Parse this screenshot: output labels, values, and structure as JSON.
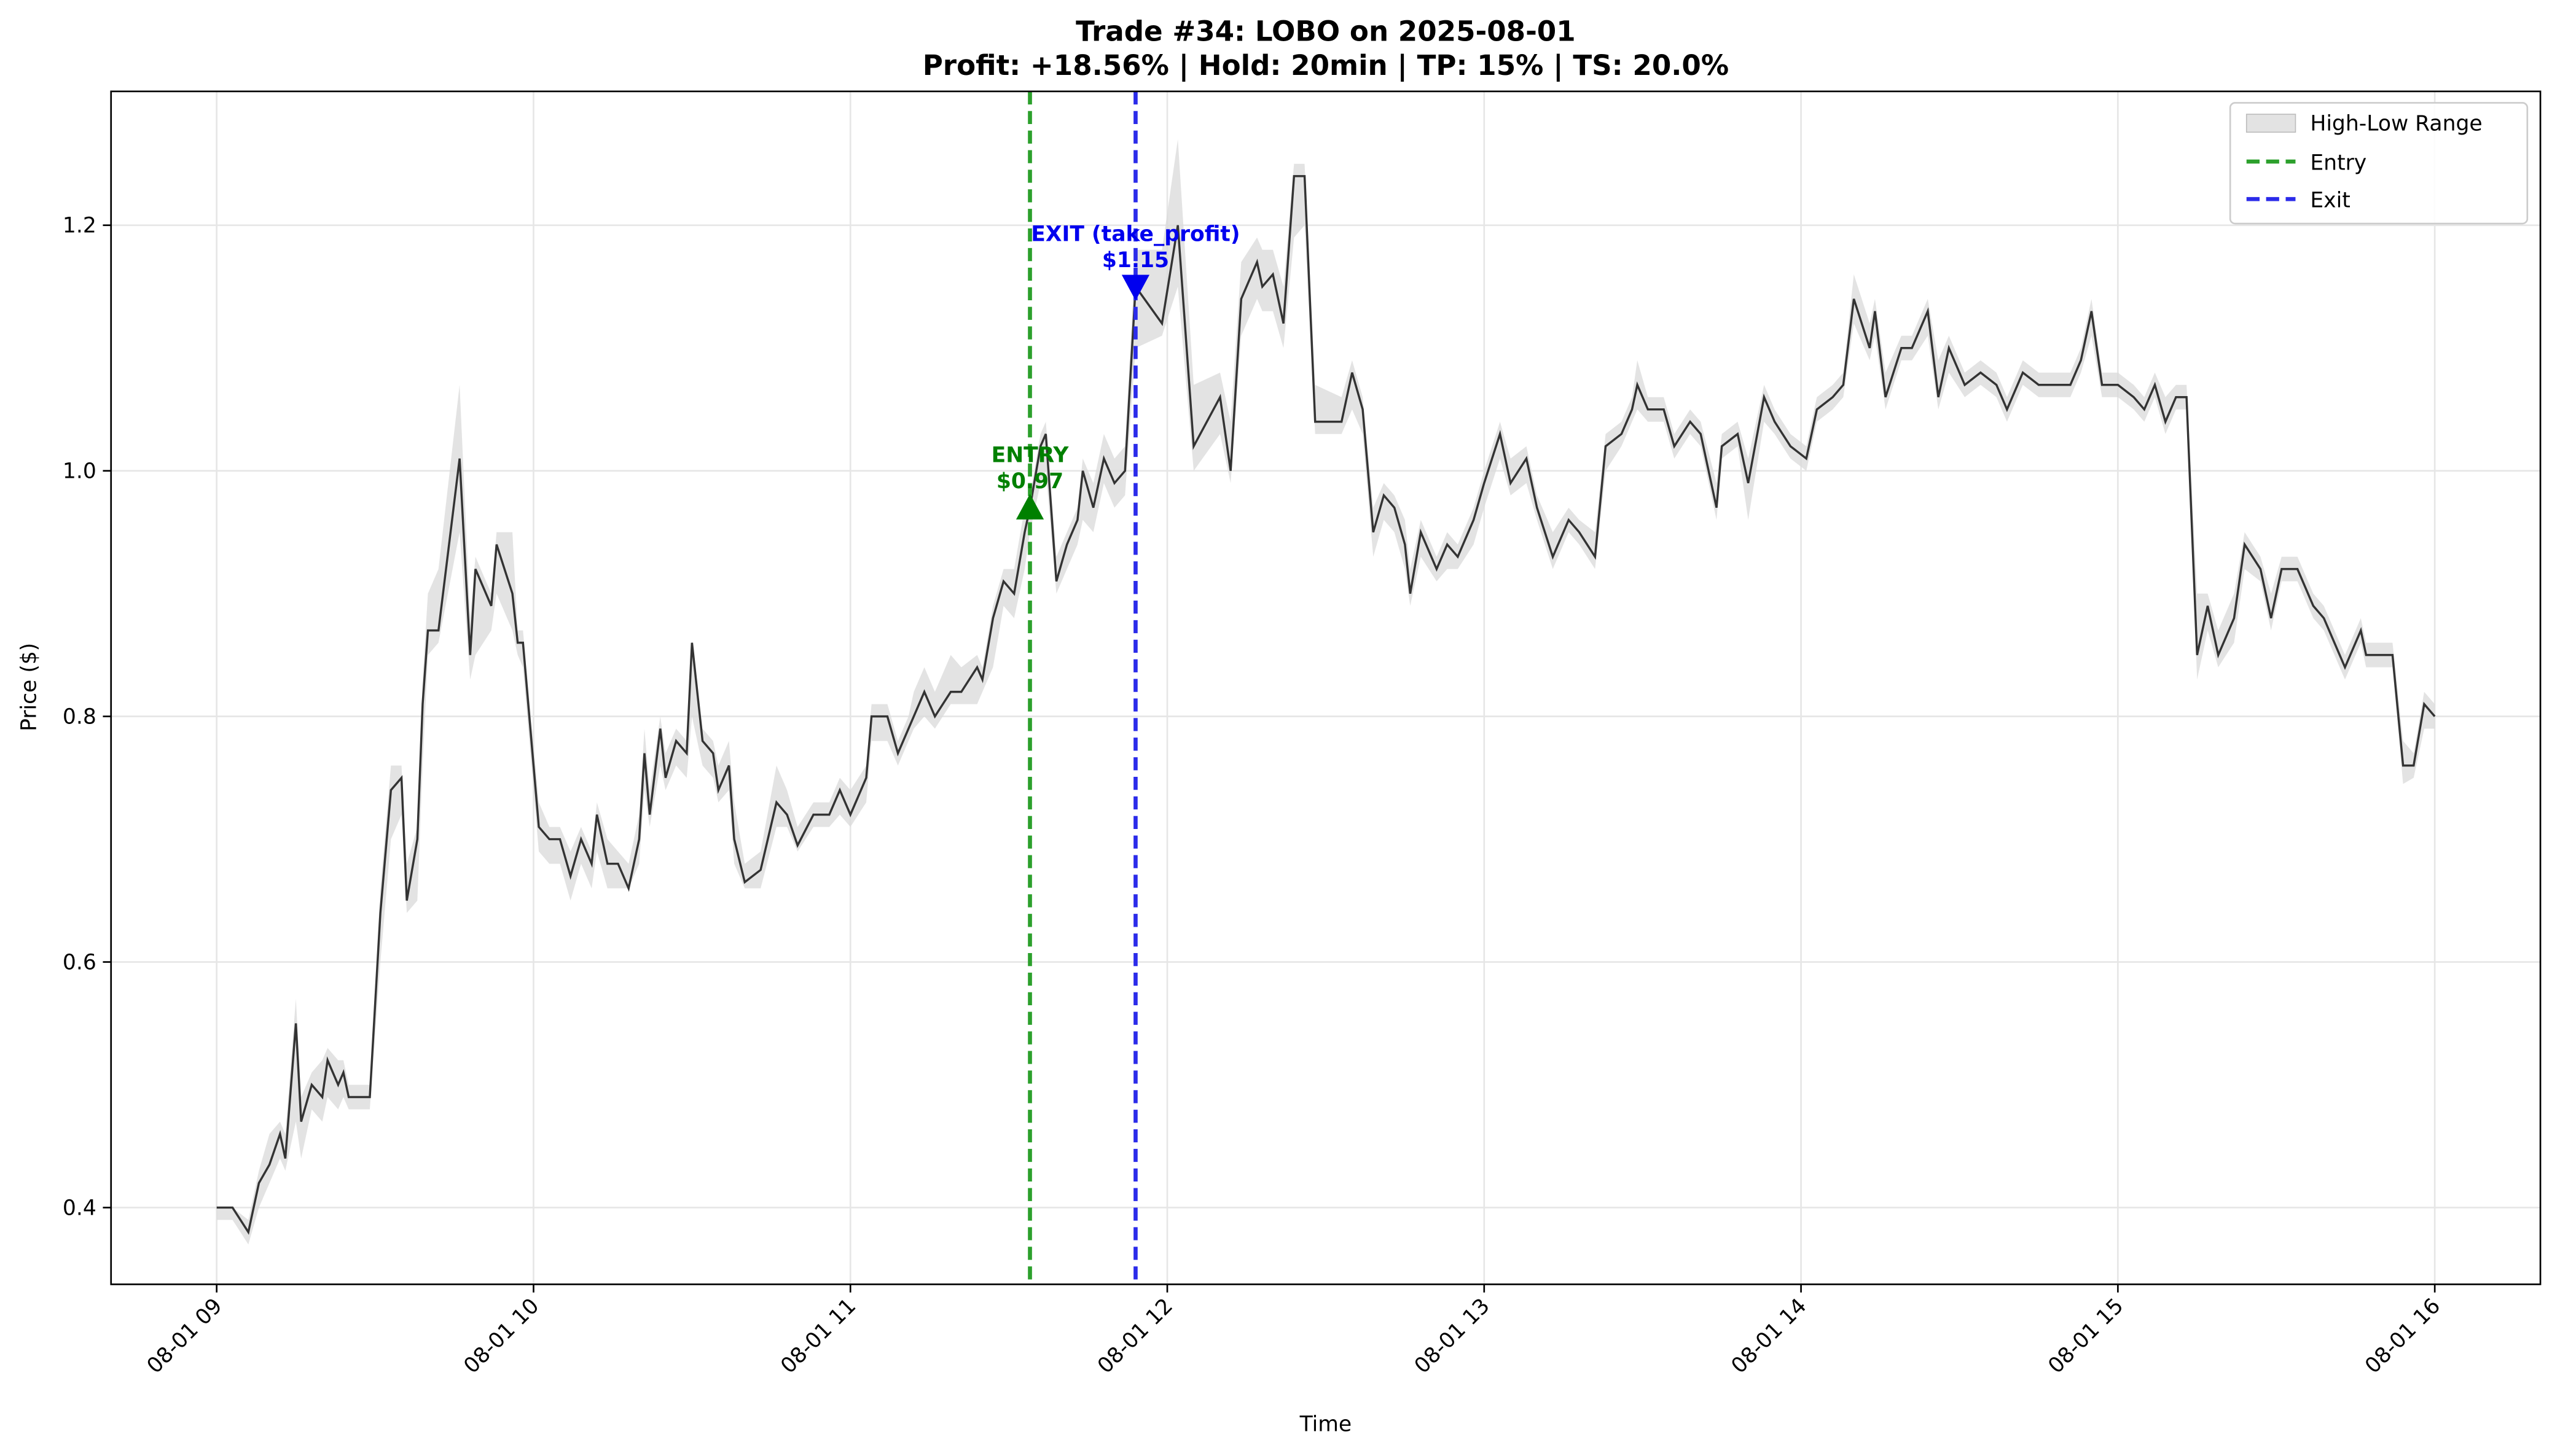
{
  "chart_data": {
    "type": "line",
    "title": "Trade #34: LOBO on 2025-08-01",
    "subtitle": "Profit: +18.56% | Hold: 20min | TP: 15% | TS: 20.0%",
    "xlabel": "Time",
    "ylabel": "Price ($)",
    "grid": true,
    "legend": "upper right",
    "color": "#333333",
    "xlim": [
      "08-01 08:40",
      "08-01 16:20"
    ],
    "xticks": [
      {
        "value": "08-01 09:00",
        "label": "08-01 09"
      },
      {
        "value": "08-01 10:00",
        "label": "08-01 10"
      },
      {
        "value": "08-01 11:00",
        "label": "08-01 11"
      },
      {
        "value": "08-01 12:00",
        "label": "08-01 12"
      },
      {
        "value": "08-01 13:00",
        "label": "08-01 13"
      },
      {
        "value": "08-01 14:00",
        "label": "08-01 14"
      },
      {
        "value": "08-01 15:00",
        "label": "08-01 15"
      },
      {
        "value": "08-01 16:00",
        "label": "08-01 16"
      }
    ],
    "ylim": [
      0.3375,
      1.309
    ],
    "yticks": [
      0.4,
      0.6,
      0.8,
      {
        "value": 1,
        "label": "1.0"
      },
      1.2
    ],
    "x": [
      "08-01 09:00",
      "08-01 09:03",
      "08-01 09:06",
      "08-01 09:08",
      "08-01 09:10",
      "08-01 09:12",
      "08-01 09:13",
      "08-01 09:15",
      "08-01 09:16",
      "08-01 09:18",
      "08-01 09:20",
      "08-01 09:21",
      "08-01 09:23",
      "08-01 09:24",
      "08-01 09:25",
      "08-01 09:27",
      "08-01 09:29",
      "08-01 09:31",
      "08-01 09:33",
      "08-01 09:35",
      "08-01 09:36",
      "08-01 09:38",
      "08-01 09:39",
      "08-01 09:40",
      "08-01 09:42",
      "08-01 09:46",
      "08-01 09:48",
      "08-01 09:49",
      "08-01 09:52",
      "08-01 09:53",
      "08-01 09:56",
      "08-01 09:57",
      "08-01 09:58",
      "08-01 10:01",
      "08-01 10:03",
      "08-01 10:05",
      "08-01 10:07",
      "08-01 10:09",
      "08-01 10:11",
      "08-01 10:12",
      "08-01 10:14",
      "08-01 10:16",
      "08-01 10:18",
      "08-01 10:20",
      "08-01 10:21",
      "08-01 10:22",
      "08-01 10:24",
      "08-01 10:25",
      "08-01 10:27",
      "08-01 10:29",
      "08-01 10:30",
      "08-01 10:32",
      "08-01 10:34",
      "08-01 10:35",
      "08-01 10:37",
      "08-01 10:38",
      "08-01 10:40",
      "08-01 10:43",
      "08-01 10:46",
      "08-01 10:48",
      "08-01 10:50",
      "08-01 10:53",
      "08-01 10:56",
      "08-01 10:58",
      "08-01 11:00",
      "08-01 11:03",
      "08-01 11:04",
      "08-01 11:07",
      "08-01 11:09",
      "08-01 11:11",
      "08-01 11:12",
      "08-01 11:14",
      "08-01 11:16",
      "08-01 11:19",
      "08-01 11:21",
      "08-01 11:24",
      "08-01 11:25",
      "08-01 11:27",
      "08-01 11:29",
      "08-01 11:31",
      "08-01 11:33",
      "08-01 11:34",
      "08-01 11:36",
      "08-01 11:37",
      "08-01 11:39",
      "08-01 11:41",
      "08-01 11:43",
      "08-01 11:44",
      "08-01 11:46",
      "08-01 11:48",
      "08-01 11:50",
      "08-01 11:52",
      "08-01 11:54",
      "08-01 11:59",
      "08-01 12:02",
      "08-01 12:05",
      "08-01 12:10",
      "08-01 12:12",
      "08-01 12:14",
      "08-01 12:17",
      "08-01 12:18",
      "08-01 12:20",
      "08-01 12:22",
      "08-01 12:24",
      "08-01 12:26",
      "08-01 12:28",
      "08-01 12:33",
      "08-01 12:35",
      "08-01 12:37",
      "08-01 12:39",
      "08-01 12:41",
      "08-01 12:43",
      "08-01 12:45",
      "08-01 12:46",
      "08-01 12:48",
      "08-01 12:51",
      "08-01 12:53",
      "08-01 12:55",
      "08-01 12:58",
      "08-01 13:00",
      "08-01 13:03",
      "08-01 13:05",
      "08-01 13:08",
      "08-01 13:10",
      "08-01 13:13",
      "08-01 13:16",
      "08-01 13:18",
      "08-01 13:21",
      "08-01 13:23",
      "08-01 13:26",
      "08-01 13:28",
      "08-01 13:29",
      "08-01 13:31",
      "08-01 13:34",
      "08-01 13:36",
      "08-01 13:39",
      "08-01 13:41",
      "08-01 13:44",
      "08-01 13:45",
      "08-01 13:48",
      "08-01 13:50",
      "08-01 13:53",
      "08-01 13:55",
      "08-01 13:58",
      "08-01 14:01",
      "08-01 14:03",
      "08-01 14:06",
      "08-01 14:08",
      "08-01 14:10",
      "08-01 14:13",
      "08-01 14:14",
      "08-01 14:16",
      "08-01 14:19",
      "08-01 14:21",
      "08-01 14:24",
      "08-01 14:26",
      "08-01 14:28",
      "08-01 14:31",
      "08-01 14:34",
      "08-01 14:37",
      "08-01 14:39",
      "08-01 14:42",
      "08-01 14:45",
      "08-01 14:48",
      "08-01 14:51",
      "08-01 14:53",
      "08-01 14:55",
      "08-01 14:57",
      "08-01 15:00",
      "08-01 15:03",
      "08-01 15:05",
      "08-01 15:07",
      "08-01 15:09",
      "08-01 15:11",
      "08-01 15:13",
      "08-01 15:15",
      "08-01 15:17",
      "08-01 15:19",
      "08-01 15:22",
      "08-01 15:24",
      "08-01 15:27",
      "08-01 15:29",
      "08-01 15:31",
      "08-01 15:34",
      "08-01 15:37",
      "08-01 15:39",
      "08-01 15:42",
      "08-01 15:43",
      "08-01 15:46",
      "08-01 15:47",
      "08-01 15:50",
      "08-01 15:52",
      "08-01 15:54",
      "08-01 15:56",
      "08-01 15:58",
      "08-01 16:00"
    ],
    "values": [
      0.4,
      0.4,
      0.38,
      0.42,
      0.435,
      0.46,
      0.44,
      0.55,
      0.47,
      0.5,
      0.49,
      0.52,
      0.5,
      0.51,
      0.49,
      0.49,
      0.49,
      0.64,
      0.74,
      0.75,
      0.65,
      0.7,
      0.81,
      0.87,
      0.87,
      1.01,
      0.85,
      0.92,
      0.89,
      0.94,
      0.9,
      0.86,
      0.86,
      0.71,
      0.7,
      0.7,
      0.67,
      0.7,
      0.68,
      0.72,
      0.68,
      0.68,
      0.66,
      0.7,
      0.77,
      0.72,
      0.79,
      0.75,
      0.78,
      0.77,
      0.86,
      0.78,
      0.77,
      0.74,
      0.76,
      0.7,
      0.665,
      0.675,
      0.73,
      0.72,
      0.695,
      0.72,
      0.72,
      0.74,
      0.72,
      0.75,
      0.8,
      0.8,
      0.77,
      0.79,
      0.8,
      0.82,
      0.8,
      0.82,
      0.82,
      0.84,
      0.83,
      0.88,
      0.91,
      0.9,
      0.95,
      0.97,
      1.02,
      1.03,
      0.91,
      0.94,
      0.96,
      1.0,
      0.97,
      1.01,
      0.99,
      1.0,
      1.15,
      1.12,
      1.2,
      1.02,
      1.06,
      1.0,
      1.14,
      1.17,
      1.15,
      1.16,
      1.12,
      1.24,
      1.24,
      1.04,
      1.04,
      1.08,
      1.05,
      0.95,
      0.98,
      0.97,
      0.94,
      0.9,
      0.95,
      0.92,
      0.94,
      0.93,
      0.96,
      0.99,
      1.03,
      0.99,
      1.01,
      0.97,
      0.93,
      0.96,
      0.95,
      0.93,
      1.02,
      1.03,
      1.05,
      1.07,
      1.05,
      1.05,
      1.02,
      1.04,
      1.03,
      0.97,
      1.02,
      1.03,
      0.99,
      1.06,
      1.04,
      1.02,
      1.01,
      1.05,
      1.06,
      1.07,
      1.14,
      1.1,
      1.13,
      1.06,
      1.1,
      1.1,
      1.13,
      1.06,
      1.1,
      1.07,
      1.08,
      1.07,
      1.05,
      1.08,
      1.07,
      1.07,
      1.07,
      1.09,
      1.13,
      1.07,
      1.07,
      1.06,
      1.05,
      1.07,
      1.04,
      1.06,
      1.06,
      0.85,
      0.89,
      0.85,
      0.88,
      0.94,
      0.92,
      0.88,
      0.92,
      0.92,
      0.89,
      0.88,
      0.85,
      0.84,
      0.87,
      0.85,
      0.85,
      0.85,
      0.76,
      0.76,
      0.81,
      0.8
    ],
    "range": {
      "name": "High-Low Range",
      "color": "#d9d9d9",
      "high": [
        0.4,
        0.4,
        0.39,
        0.43,
        0.46,
        0.47,
        0.46,
        0.57,
        0.49,
        0.51,
        0.52,
        0.53,
        0.52,
        0.52,
        0.5,
        0.5,
        0.5,
        0.66,
        0.76,
        0.76,
        0.68,
        0.71,
        0.83,
        0.9,
        0.92,
        1.07,
        0.88,
        0.93,
        0.9,
        0.95,
        0.95,
        0.87,
        0.87,
        0.73,
        0.71,
        0.71,
        0.69,
        0.71,
        0.69,
        0.73,
        0.7,
        0.69,
        0.68,
        0.72,
        0.79,
        0.74,
        0.8,
        0.77,
        0.79,
        0.78,
        0.86,
        0.79,
        0.78,
        0.76,
        0.78,
        0.73,
        0.68,
        0.69,
        0.76,
        0.74,
        0.71,
        0.73,
        0.73,
        0.75,
        0.74,
        0.76,
        0.81,
        0.81,
        0.78,
        0.8,
        0.82,
        0.84,
        0.82,
        0.85,
        0.84,
        0.85,
        0.84,
        0.89,
        0.92,
        0.92,
        0.97,
        0.98,
        1.03,
        1.04,
        0.93,
        0.95,
        0.97,
        1.01,
        0.99,
        1.03,
        1.01,
        1.02,
        1.18,
        1.18,
        1.27,
        1.07,
        1.08,
        1.04,
        1.17,
        1.19,
        1.18,
        1.18,
        1.15,
        1.25,
        1.25,
        1.07,
        1.06,
        1.09,
        1.06,
        0.97,
        0.99,
        0.98,
        0.96,
        0.92,
        0.96,
        0.93,
        0.95,
        0.94,
        0.97,
        1.0,
        1.04,
        1.01,
        1.02,
        0.98,
        0.95,
        0.97,
        0.96,
        0.95,
        1.03,
        1.04,
        1.06,
        1.09,
        1.06,
        1.06,
        1.03,
        1.05,
        1.04,
        0.99,
        1.03,
        1.04,
        1.01,
        1.07,
        1.05,
        1.03,
        1.02,
        1.06,
        1.07,
        1.08,
        1.16,
        1.12,
        1.14,
        1.08,
        1.11,
        1.11,
        1.14,
        1.09,
        1.11,
        1.08,
        1.09,
        1.08,
        1.06,
        1.09,
        1.08,
        1.08,
        1.08,
        1.1,
        1.14,
        1.08,
        1.08,
        1.07,
        1.06,
        1.08,
        1.06,
        1.07,
        1.07,
        0.9,
        0.9,
        0.87,
        0.9,
        0.95,
        0.93,
        0.9,
        0.93,
        0.93,
        0.9,
        0.89,
        0.86,
        0.85,
        0.88,
        0.86,
        0.86,
        0.86,
        0.78,
        0.77,
        0.82,
        0.81
      ],
      "low": [
        0.39,
        0.39,
        0.37,
        0.4,
        0.42,
        0.44,
        0.43,
        0.47,
        0.44,
        0.48,
        0.47,
        0.49,
        0.48,
        0.49,
        0.48,
        0.48,
        0.48,
        0.6,
        0.7,
        0.72,
        0.64,
        0.65,
        0.76,
        0.85,
        0.86,
        0.95,
        0.83,
        0.85,
        0.87,
        0.9,
        0.87,
        0.85,
        0.84,
        0.69,
        0.68,
        0.68,
        0.65,
        0.68,
        0.66,
        0.69,
        0.66,
        0.66,
        0.66,
        0.68,
        0.74,
        0.71,
        0.76,
        0.74,
        0.76,
        0.75,
        0.8,
        0.76,
        0.75,
        0.73,
        0.74,
        0.68,
        0.66,
        0.66,
        0.71,
        0.71,
        0.69,
        0.71,
        0.71,
        0.72,
        0.71,
        0.73,
        0.78,
        0.78,
        0.76,
        0.78,
        0.79,
        0.8,
        0.79,
        0.81,
        0.81,
        0.81,
        0.82,
        0.84,
        0.89,
        0.88,
        0.92,
        0.95,
        0.99,
        1.0,
        0.9,
        0.92,
        0.94,
        0.96,
        0.95,
        0.99,
        0.97,
        0.98,
        1.1,
        1.11,
        1.15,
        1.0,
        1.03,
        0.99,
        1.11,
        1.14,
        1.13,
        1.13,
        1.1,
        1.19,
        1.2,
        1.03,
        1.03,
        1.05,
        1.03,
        0.93,
        0.96,
        0.95,
        0.92,
        0.89,
        0.93,
        0.91,
        0.92,
        0.92,
        0.94,
        0.97,
        1.01,
        0.98,
        0.99,
        0.96,
        0.92,
        0.95,
        0.94,
        0.92,
        1.0,
        1.02,
        1.04,
        1.05,
        1.04,
        1.04,
        1.01,
        1.03,
        1.02,
        0.96,
        1.01,
        1.02,
        0.96,
        1.04,
        1.03,
        1.01,
        1.0,
        1.04,
        1.05,
        1.06,
        1.12,
        1.09,
        1.11,
        1.05,
        1.09,
        1.09,
        1.11,
        1.05,
        1.08,
        1.06,
        1.07,
        1.06,
        1.04,
        1.07,
        1.06,
        1.06,
        1.06,
        1.08,
        1.11,
        1.06,
        1.06,
        1.05,
        1.04,
        1.06,
        1.03,
        1.05,
        1.05,
        0.83,
        0.87,
        0.84,
        0.86,
        0.92,
        0.91,
        0.87,
        0.91,
        0.91,
        0.88,
        0.87,
        0.84,
        0.83,
        0.86,
        0.84,
        0.84,
        0.84,
        0.745,
        0.75,
        0.79,
        0.79
      ]
    },
    "markers": [
      {
        "name": "Entry",
        "x": "08-01 11:34",
        "price": 0.97,
        "label": "ENTRY",
        "price_label": "$0.97",
        "symbol": "triangle-up",
        "line_color": "#2ca02c",
        "text_color": "#008000"
      },
      {
        "name": "Exit",
        "x": "08-01 11:54",
        "price": 1.15,
        "label": "EXIT (take_profit)",
        "price_label": "$1.15",
        "symbol": "triangle-down",
        "line_color": "#2b2bea",
        "text_color": "#0000ee"
      }
    ]
  }
}
